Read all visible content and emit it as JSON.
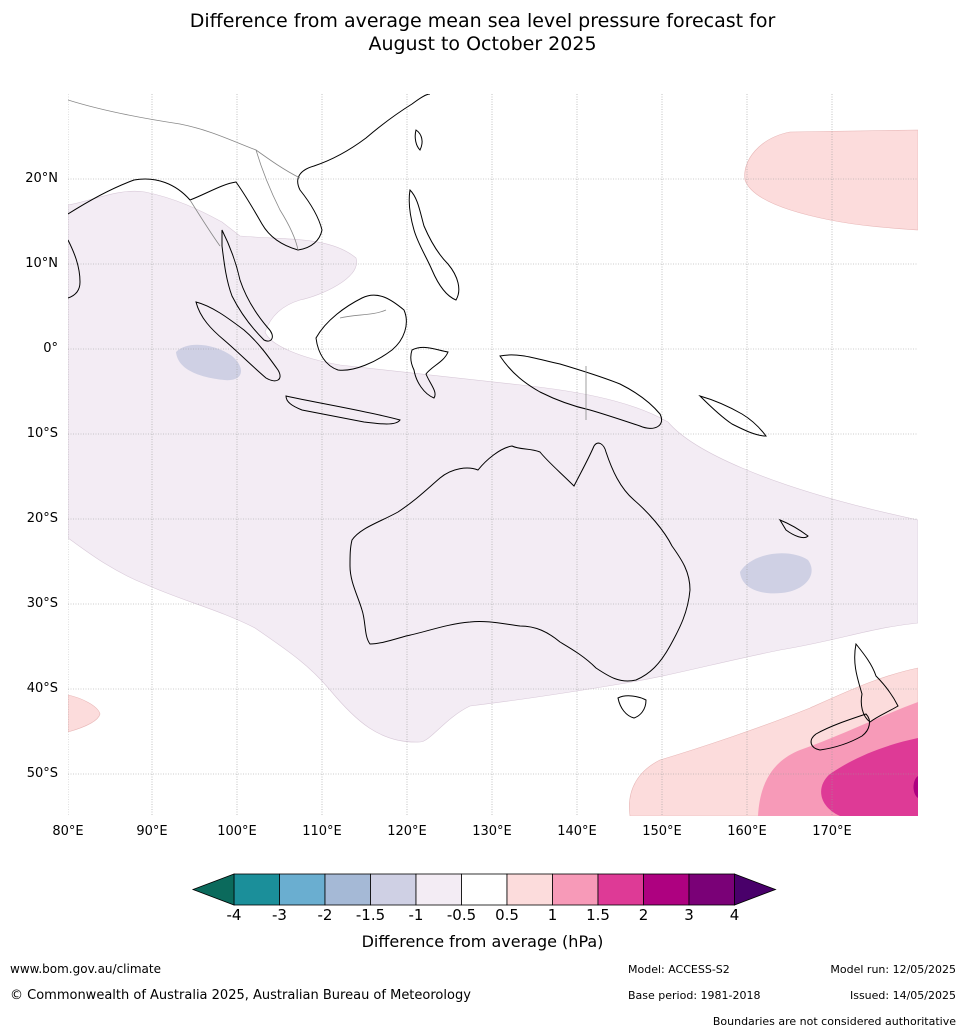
{
  "title_line1": "Difference from average mean sea level pressure forecast for",
  "title_line2": "August to October 2025",
  "lat_labels": [
    "20°N",
    "10°N",
    "0°",
    "10°S",
    "20°S",
    "30°S",
    "40°S",
    "50°S"
  ],
  "lon_labels": [
    "80°E",
    "90°E",
    "100°E",
    "110°E",
    "120°E",
    "130°E",
    "140°E",
    "150°E",
    "160°E",
    "170°E"
  ],
  "colorbar": {
    "ticks": [
      "-4",
      "-3",
      "-2",
      "-1.5",
      "-1",
      "-0.5",
      "0.5",
      "1",
      "1.5",
      "2",
      "3",
      "4"
    ],
    "colors": [
      "#1b8f9a",
      "#6aaed0",
      "#a5b9d6",
      "#cfd0e4",
      "#f3ecf4",
      "#ffffff",
      "#fcdcdc",
      "#f79ab8",
      "#de3a96",
      "#ae0180",
      "#7a0177"
    ],
    "low_extend_color": "#0b6a5c",
    "high_extend_color": "#49006a",
    "title": "Difference from average (hPa)"
  },
  "footer": {
    "website": "www.bom.gov.au/climate",
    "copyright": "© Commonwealth of Australia 2025, Australian Bureau of Meteorology",
    "model": "Model: ACCESS-S2",
    "base_period": "Base period: 1981-2018",
    "model_run": "Model run: 12/05/2025",
    "issued": "Issued: 14/05/2025",
    "boundaries": "Boundaries are not considered authoritative"
  }
}
